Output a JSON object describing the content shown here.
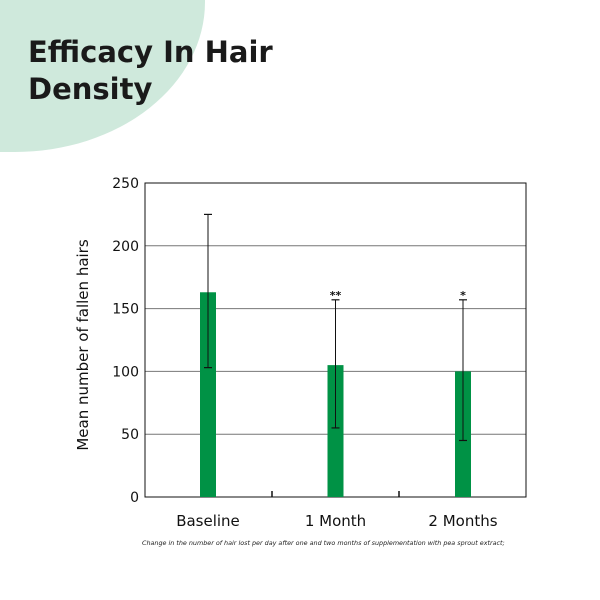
{
  "title": "Efficacy In Hair Density",
  "caption": "Change in the number of hair lost per day after one and two months of supplementation with pea sprout extract;",
  "colors": {
    "bar": "#009245",
    "blob": "#cfe9dc"
  },
  "chart_data": {
    "type": "bar",
    "title": "Efficacy In Hair Density",
    "xlabel": "",
    "ylabel": "Mean number of fallen hairs",
    "ylim": [
      0,
      250
    ],
    "yticks": [
      0,
      50,
      100,
      150,
      200,
      250
    ],
    "grid": true,
    "categories": [
      "Baseline",
      "1 Month",
      "2 Months"
    ],
    "values": [
      163,
      105,
      100
    ],
    "error_low": [
      103,
      55,
      45
    ],
    "error_high": [
      225,
      157,
      157
    ],
    "annotations": [
      "",
      "**",
      "*"
    ]
  }
}
